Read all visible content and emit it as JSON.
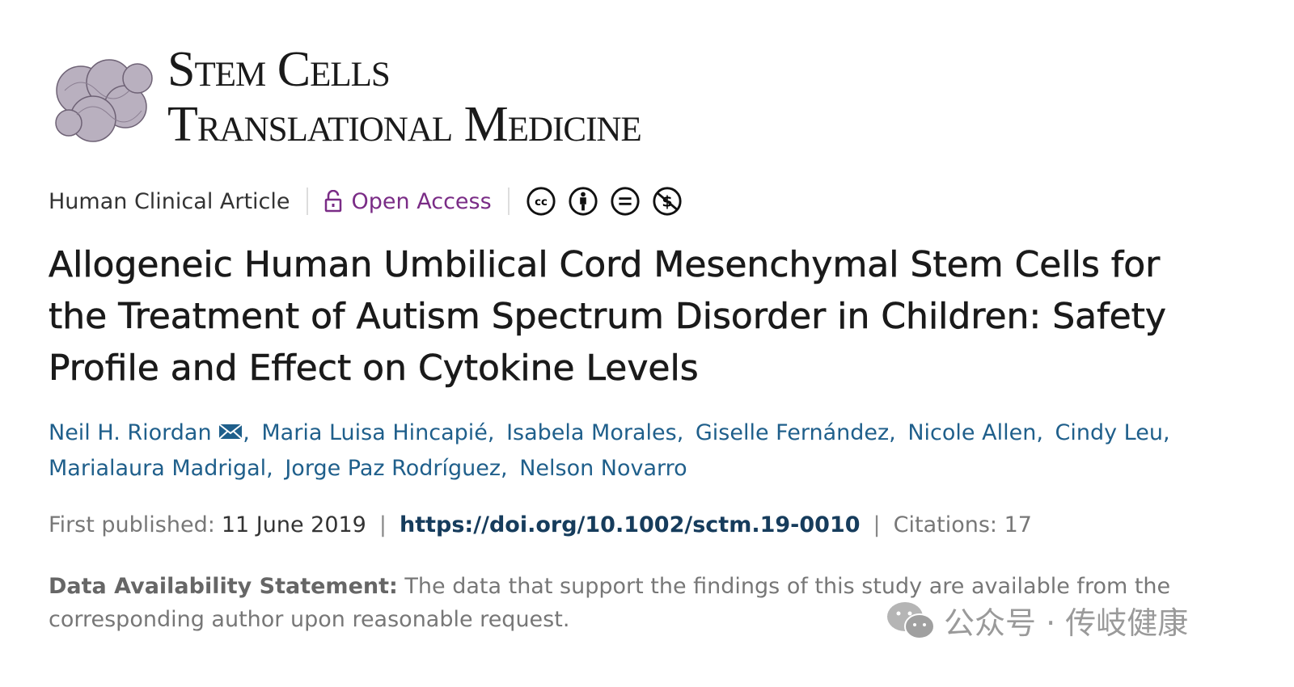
{
  "journal": {
    "name_line1": "Stem Cells",
    "name_line2": "Translational Medicine",
    "logo_icon": "cell-cluster-logo"
  },
  "meta": {
    "article_type": "Human Clinical Article",
    "access": "Open Access",
    "access_icon": "unlock-icon",
    "license_icons": [
      "cc-icon",
      "by-icon",
      "nd-icon",
      "nc-icon"
    ]
  },
  "title": "Allogeneic Human Umbilical Cord Mesenchymal Stem Cells for the Treatment of Autism Spectrum Disorder in Children: Safety Profile and Effect on Cytokine Levels",
  "authors": [
    "Neil H. Riordan",
    "Maria Luisa Hincapié",
    "Isabela Morales",
    "Giselle Fernández",
    "Nicole Allen",
    "Cindy Leu",
    "Marialaura Madrigal",
    "Jorge Paz Rodríguez",
    "Nelson Novarro"
  ],
  "publication": {
    "first_published_label": "First published:",
    "date": "11 June 2019",
    "doi": "https://doi.org/10.1002/sctm.19-0010",
    "citations": "Citations: 17"
  },
  "data_statement": {
    "label": "Data Availability Statement:",
    "text": "The data that support the findings of this study are available from the corresponding author upon reasonable request."
  },
  "watermark": "公众号 · 传岐健康",
  "colors": {
    "open_access": "#7a2c86",
    "author_link": "#1f5f8b",
    "doi": "#163c5c"
  }
}
